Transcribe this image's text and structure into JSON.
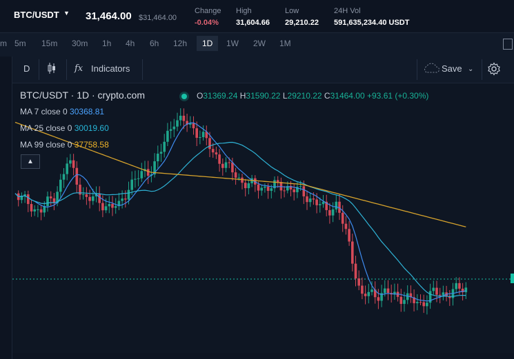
{
  "header": {
    "pair": "BTC/USDT",
    "last_price": "31,464.00",
    "last_price_sub": "$31,464.00",
    "stats": [
      {
        "label": "Change",
        "value": "-0.04%"
      },
      {
        "label": "High",
        "value": "31,604.66"
      },
      {
        "label": "Low",
        "value": "29,210.22"
      },
      {
        "label": "24H Vol",
        "value": "591,635,234.40 USDT"
      }
    ]
  },
  "timeframes": [
    "m",
    "5m",
    "15m",
    "30m",
    "1h",
    "4h",
    "6h",
    "12h",
    "1D",
    "1W",
    "2W",
    "1M"
  ],
  "active_timeframe": "1D",
  "toolbar": {
    "d_label": "D",
    "indicators_label": "Indicators",
    "save_label": "Save"
  },
  "chart": {
    "title": "BTC/USDT · 1D · crypto.com",
    "ohlc": {
      "o": "31369.24",
      "h": "31590.22",
      "l": "29210.22",
      "c": "31464.00",
      "change": "+93.61 (+0.30%)"
    },
    "ma": [
      {
        "label": "MA 7 close 0",
        "value": "30368.81",
        "color": "#4ba3ff"
      },
      {
        "label": "MA 25 close 0",
        "value": "30019.60",
        "color": "#27b6d8"
      },
      {
        "label": "MA 99 close 0",
        "value": "37758.58",
        "color": "#f0b429"
      }
    ],
    "colors": {
      "up": "#1fa58b",
      "down": "#d44a58",
      "ma7": "#3f8cf0",
      "ma25": "#2fb3d6",
      "ma99": "#d7a32c",
      "price_line": "#18c1a7"
    }
  }
}
